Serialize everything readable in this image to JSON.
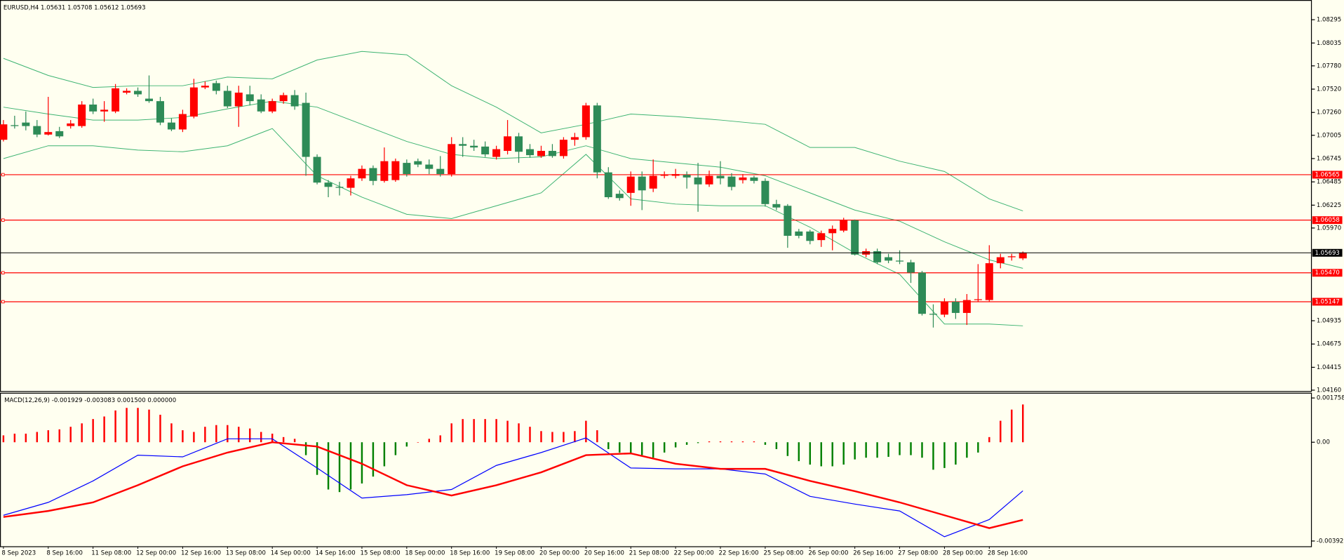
{
  "chart_data": [
    {
      "type": "candlestick",
      "header": "EURUSD,H4  1.05631 1.05708 1.05612 1.05693",
      "up_color": "#ff0000",
      "down_color": "#2e8b57",
      "categories": [
        "8 Sep 2023",
        null,
        null,
        null,
        "8 Sep 16:00",
        null,
        null,
        null,
        "11 Sep 08:00",
        null,
        null,
        null,
        "12 Sep 00:00",
        null,
        null,
        null,
        "12 Sep 16:00",
        null,
        null,
        null,
        "13 Sep 08:00",
        null,
        null,
        null,
        "14 Sep 00:00",
        null,
        null,
        null,
        "14 Sep 16:00",
        null,
        null,
        null,
        "15 Sep 08:00",
        null,
        null,
        null,
        "18 Sep 00:00",
        null,
        null,
        null,
        "18 Sep 16:00",
        null,
        null,
        null,
        "19 Sep 08:00",
        null,
        null,
        null,
        "20 Sep 00:00",
        null,
        null,
        null,
        "20 Sep 16:00",
        null,
        null,
        null,
        "21 Sep 08:00",
        null,
        null,
        null,
        "22 Sep 00:00",
        null,
        null,
        null,
        "22 Sep 16:00",
        null,
        null,
        null,
        "25 Sep 08:00",
        null,
        null,
        null,
        "26 Sep 00:00",
        null,
        null,
        null,
        "26 Sep 16:00",
        null,
        null,
        null,
        "27 Sep 08:00",
        null,
        null,
        null,
        "28 Sep 00:00",
        null,
        null,
        null,
        "28 Sep 16:00",
        null,
        null,
        null
      ],
      "open": [
        1.06955,
        1.07118,
        1.07147,
        1.07108,
        1.07013,
        1.07051,
        1.07108,
        1.07108,
        1.07348,
        1.07271,
        1.07271,
        1.07481,
        1.07501,
        1.07414,
        1.07386,
        1.07147,
        1.0707,
        1.07214,
        1.07539,
        1.07587,
        1.07501,
        1.07328,
        1.07462,
        1.07405,
        1.07271,
        1.07386,
        1.07453,
        1.07367,
        1.06764,
        1.06477,
        1.06429,
        1.06419,
        1.06524,
        1.06639,
        1.06496,
        1.06505,
        1.06697,
        1.06716,
        1.06678,
        1.0663,
        1.06572,
        1.06907,
        1.06888,
        1.06879,
        1.06764,
        1.06831,
        1.06993,
        1.0685,
        1.06773,
        1.06831,
        1.06773,
        1.06955,
        1.06984,
        1.07338,
        1.06591,
        1.06352,
        1.06362,
        1.06544,
        1.0641,
        1.06553,
        1.06553,
        1.06563,
        1.06534,
        1.06457,
        1.06553,
        1.06544,
        1.06505,
        1.06534,
        1.06496,
        1.06237,
        1.06218,
        1.05931,
        1.05931,
        1.05835,
        1.05912,
        1.05941,
        1.06056,
        1.05673,
        1.05711,
        1.05644,
        1.05606,
        1.05587,
        1.05472,
        1.05012,
        1.05003,
        1.05146,
        1.05022,
        1.05166,
        1.05166,
        1.05577,
        1.05644,
        1.05631
      ],
      "high": [
        1.07175,
        1.07223,
        1.07271,
        1.07175,
        1.07434,
        1.07099,
        1.07175,
        1.07386,
        1.07414,
        1.07386,
        1.07577,
        1.07529,
        1.07539,
        1.07673,
        1.07434,
        1.07194,
        1.0729,
        1.07635,
        1.07606,
        1.07615,
        1.07558,
        1.07558,
        1.07558,
        1.07462,
        1.07414,
        1.07481,
        1.0751,
        1.07481,
        1.06792,
        1.06505,
        1.06486,
        1.06553,
        1.06668,
        1.06668,
        1.06869,
        1.06745,
        1.06735,
        1.06745,
        1.06735,
        1.06773,
        1.06984,
        1.06984,
        1.06955,
        1.06936,
        1.06888,
        1.07175,
        1.07032,
        1.06907,
        1.06888,
        1.06907,
        1.06984,
        1.07032,
        1.07367,
        1.07367,
        1.06649,
        1.0639,
        1.06601,
        1.06601,
        1.06735,
        1.06601,
        1.0663,
        1.06601,
        1.06697,
        1.06611,
        1.06716,
        1.06582,
        1.06572,
        1.06553,
        1.06524,
        1.06285,
        1.06237,
        1.0596,
        1.0595,
        1.05941,
        1.05998,
        1.06084,
        1.06065,
        1.0574,
        1.0574,
        1.05682,
        1.05721,
        1.05615,
        1.05491,
        1.05118,
        1.05185,
        1.05185,
        1.05233,
        1.05567,
        1.05778,
        1.05682,
        1.05682,
        1.05708
      ],
      "low": [
        1.06936,
        1.0708,
        1.0706,
        1.06984,
        1.07003,
        1.06974,
        1.0708,
        1.07089,
        1.07242,
        1.07156,
        1.07252,
        1.07462,
        1.07434,
        1.07367,
        1.07118,
        1.07051,
        1.07041,
        1.07194,
        1.0752,
        1.07462,
        1.07309,
        1.07099,
        1.07338,
        1.07252,
        1.07252,
        1.07357,
        1.0729,
        1.06553,
        1.06457,
        1.06314,
        1.06333,
        1.06333,
        1.06496,
        1.06448,
        1.06477,
        1.06486,
        1.06544,
        1.06649,
        1.06572,
        1.06544,
        1.06544,
        1.06764,
        1.06831,
        1.06764,
        1.06735,
        1.06792,
        1.06697,
        1.06754,
        1.06754,
        1.06754,
        1.06745,
        1.06888,
        1.06955,
        1.06524,
        1.06295,
        1.06276,
        1.06218,
        1.0617,
        1.06371,
        1.06524,
        1.06524,
        1.0641,
        1.06151,
        1.06429,
        1.06457,
        1.0639,
        1.06467,
        1.06467,
        1.06209,
        1.0617,
        1.05749,
        1.05855,
        1.05788,
        1.05759,
        1.05721,
        1.05922,
        1.05663,
        1.05644,
        1.05567,
        1.05577,
        1.05567,
        1.05357,
        1.04993,
        1.04859,
        1.04974,
        1.04955,
        1.04888,
        1.05146,
        1.05146,
        1.0552,
        1.05606,
        1.05612
      ],
      "close": [
        1.07127,
        1.07108,
        1.07108,
        1.07013,
        1.07041,
        1.06993,
        1.07137,
        1.07348,
        1.07271,
        1.0729,
        1.07529,
        1.07501,
        1.07462,
        1.07386,
        1.07147,
        1.0707,
        1.07242,
        1.07539,
        1.07558,
        1.07501,
        1.07328,
        1.07481,
        1.07386,
        1.07271,
        1.07386,
        1.07453,
        1.07328,
        1.06764,
        1.06477,
        1.06429,
        1.06419,
        1.06524,
        1.0663,
        1.06496,
        1.06716,
        1.06716,
        1.06572,
        1.06678,
        1.0663,
        1.06572,
        1.06907,
        1.06888,
        1.06869,
        1.06792,
        1.0685,
        1.06993,
        1.06821,
        1.06783,
        1.06831,
        1.06773,
        1.06955,
        1.06984,
        1.07338,
        1.06591,
        1.06314,
        1.06304,
        1.06544,
        1.0639,
        1.06553,
        1.06563,
        1.06572,
        1.06534,
        1.06457,
        1.06553,
        1.06524,
        1.06429,
        1.06534,
        1.06496,
        1.06237,
        1.06199,
        1.05883,
        1.05883,
        1.05826,
        1.05912,
        1.0596,
        1.06056,
        1.05673,
        1.05711,
        1.05587,
        1.05606,
        1.05596,
        1.05472,
        1.05012,
        1.05003,
        1.05146,
        1.05022,
        1.05166,
        1.05175,
        1.05577,
        1.05644,
        1.05654,
        1.05693
      ],
      "bands": [
        {
          "color": "#3cb371",
          "x": [
            0,
            4,
            8,
            12,
            16,
            20,
            24,
            28,
            32,
            36,
            40,
            44,
            48,
            52,
            56,
            60,
            64,
            68,
            72,
            76,
            80,
            84,
            88,
            91
          ],
          "values": [
            1.07864,
            1.07673,
            1.07539,
            1.07558,
            1.07558,
            1.07654,
            1.07635,
            1.07845,
            1.07941,
            1.07903,
            1.07558,
            1.07319,
            1.07032,
            1.07127,
            1.07242,
            1.07214,
            1.07175,
            1.07127,
            1.06869,
            1.06869,
            1.06716,
            1.06601,
            1.06295,
            1.06161
          ]
        },
        {
          "color": "#3cb371",
          "x": [
            0,
            4,
            8,
            12,
            16,
            20,
            24,
            28,
            32,
            36,
            40,
            44,
            48,
            52,
            56,
            60,
            64,
            68,
            72,
            76,
            80,
            84,
            88,
            91
          ],
          "values": [
            1.07319,
            1.07242,
            1.07175,
            1.07175,
            1.07204,
            1.073,
            1.07386,
            1.07319,
            1.07127,
            1.06936,
            1.06792,
            1.06745,
            1.06764,
            1.06888,
            1.06745,
            1.06697,
            1.06649,
            1.06553,
            1.06362,
            1.0617,
            1.06046,
            1.05816,
            1.05615,
            1.0552
          ]
        },
        {
          "color": "#3cb371",
          "x": [
            0,
            4,
            8,
            12,
            16,
            20,
            24,
            28,
            32,
            36,
            40,
            44,
            48,
            52,
            56,
            60,
            64,
            68,
            72,
            76,
            80,
            84,
            88,
            91
          ],
          "values": [
            1.06745,
            1.06888,
            1.06888,
            1.0684,
            1.06821,
            1.06888,
            1.0708,
            1.06553,
            1.06314,
            1.06123,
            1.06075,
            1.06218,
            1.06362,
            1.06792,
            1.06295,
            1.06237,
            1.06218,
            1.06218,
            1.05979,
            1.05692,
            1.05453,
            1.04898,
            1.04898,
            1.04878
          ]
        }
      ],
      "levels": [
        {
          "value": 1.06565,
          "label": "1.06565"
        },
        {
          "value": 1.06058,
          "label": "1.06058"
        },
        {
          "value": 1.0547,
          "label": "1.05470"
        },
        {
          "value": 1.05147,
          "label": "1.05147"
        }
      ],
      "level_color": "#ff0000",
      "ylim": [
        1.0415,
        1.08515
      ],
      "yticks": [
        1.08295,
        1.08035,
        {
          "value": 1.0778,
          "label": "1.07780"
        },
        {
          "value": 1.0752,
          "label": "1.07520"
        },
        {
          "value": 1.0726,
          "label": "1.07260"
        },
        1.07005,
        1.06745,
        1.06485,
        1.06225,
        {
          "value": 1.0597,
          "label": "1.05970"
        },
        1.04935,
        1.04675,
        1.04415,
        {
          "value": 1.0416,
          "label": "1.04160"
        }
      ]
    },
    {
      "type": "macd",
      "header": "MACD(12,26,9) -0.001929 -0.003083 0.001500 0.000000",
      "histogram": {
        "up_color": "#ff0000",
        "down_color": "#008000",
        "values": [
          0.000273,
          0.000341,
          0.000341,
          0.000409,
          0.000477,
          0.000512,
          0.000614,
          0.00075,
          0.000921,
          0.001023,
          0.001262,
          0.001364,
          0.001364,
          0.001296,
          0.001091,
          0.00075,
          0.000477,
          0.000409,
          0.000614,
          0.000682,
          0.000682,
          0.000614,
          0.000546,
          0.000409,
          0.000341,
          0.000205,
          0.000136,
          -0.000512,
          -0.001296,
          -0.001876,
          -0.001978,
          -0.001876,
          -0.001637,
          -0.001364,
          -0.000955,
          -0.000512,
          -0.000171,
          0,
          0.000136,
          0.000273,
          0.00075,
          0.000921,
          0.000921,
          0.000921,
          0.000921,
          0.000853,
          0.00075,
          0.000614,
          0.000443,
          0.000409,
          0.000409,
          0.000443,
          0.000853,
          0.000477,
          -0.000273,
          -0.000409,
          -0.000477,
          -0.000512,
          -0.000614,
          -0.000409,
          -0.000205,
          -0.000102,
          -3.4e-05,
          3.4e-05,
          3.4e-05,
          3.4e-05,
          3.4e-05,
          3.4e-05,
          -0.000102,
          -0.000273,
          -0.000546,
          -0.00075,
          -0.000887,
          -0.000955,
          -0.000955,
          -0.000887,
          -0.000682,
          -0.000614,
          -0.000614,
          -0.00058,
          -0.000512,
          -0.000512,
          -0.000614,
          -0.001091,
          -0.001023,
          -0.000887,
          -0.000614,
          -0.000409,
          0.000205,
          0.000853,
          0.001296,
          0.0015
        ]
      },
      "lines": [
        {
          "color": "#0000ff",
          "width": 1,
          "x": [
            0,
            4,
            8,
            12,
            16,
            20,
            24,
            28,
            32,
            36,
            40,
            44,
            48,
            52,
            56,
            60,
            64,
            68,
            72,
            76,
            80,
            84,
            88,
            91
          ],
          "values": [
            -0.002899,
            -0.002387,
            -0.001535,
            -0.000512,
            -0.00058,
            0.000136,
            0.000136,
            -0.001023,
            -0.002217,
            -0.00208,
            -0.001876,
            -0.000921,
            -0.000409,
            0.000171,
            -0.001023,
            -0.001057,
            -0.001057,
            -0.001262,
            -0.002148,
            -0.002455,
            -0.002728,
            -0.003751,
            -0.003069,
            -0.001929
          ]
        },
        {
          "color": "#ff0000",
          "width": 2,
          "x": [
            0,
            4,
            8,
            12,
            16,
            20,
            24,
            28,
            32,
            36,
            40,
            44,
            48,
            52,
            56,
            60,
            64,
            68,
            72,
            76,
            80,
            84,
            88,
            91
          ],
          "values": [
            -0.002967,
            -0.002728,
            -0.002387,
            -0.001705,
            -0.000955,
            -0.000409,
            0,
            -0.000171,
            -0.000853,
            -0.001705,
            -0.002114,
            -0.001705,
            -0.001194,
            -0.000512,
            -0.000443,
            -0.000853,
            -0.001057,
            -0.001057,
            -0.001535,
            -0.001944,
            -0.002387,
            -0.002899,
            -0.00341,
            -0.003083
          ]
        }
      ],
      "ylim": [
        -0.00413,
        0.00193
      ],
      "yticks": [
        0.001758,
        {
          "value": 0,
          "label": "0.00"
        },
        -0.003921
      ]
    }
  ]
}
